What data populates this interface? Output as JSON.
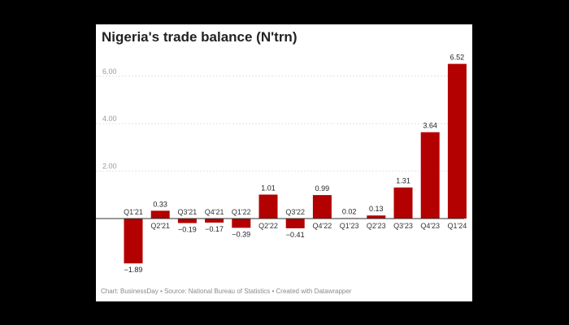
{
  "chart_data": {
    "type": "bar",
    "title": "Nigeria's trade balance (N'trn)",
    "categories": [
      "Q1'21",
      "Q2'21",
      "Q3'21",
      "Q4'21",
      "Q1'22",
      "Q2'22",
      "Q3'22",
      "Q4'22",
      "Q1'23",
      "Q2'23",
      "Q3'23",
      "Q4'23",
      "Q1'24"
    ],
    "values": [
      -1.89,
      0.33,
      -0.19,
      -0.17,
      -0.39,
      1.01,
      -0.41,
      0.99,
      0.02,
      0.13,
      1.31,
      3.64,
      6.52
    ],
    "value_labels": [
      "−1.89",
      "0.33",
      "−0.19",
      "−0.17",
      "−0.39",
      "1.01",
      "−0.41",
      "0.99",
      "0.02",
      "0.13",
      "1.31",
      "3.64",
      "6.52"
    ],
    "yticks": [
      2,
      4,
      6
    ],
    "ytick_labels": [
      "2.00",
      "4.00",
      "6.00"
    ],
    "ylim": [
      -2.4,
      7.0
    ],
    "xlabel": "",
    "ylabel": "",
    "bar_color": "#b30000",
    "grid": true,
    "footer": {
      "chart_credit": "Chart: BusinessDay",
      "source": "Source: National Bureau of Statistics",
      "created": "Created with Datawrapper"
    }
  }
}
